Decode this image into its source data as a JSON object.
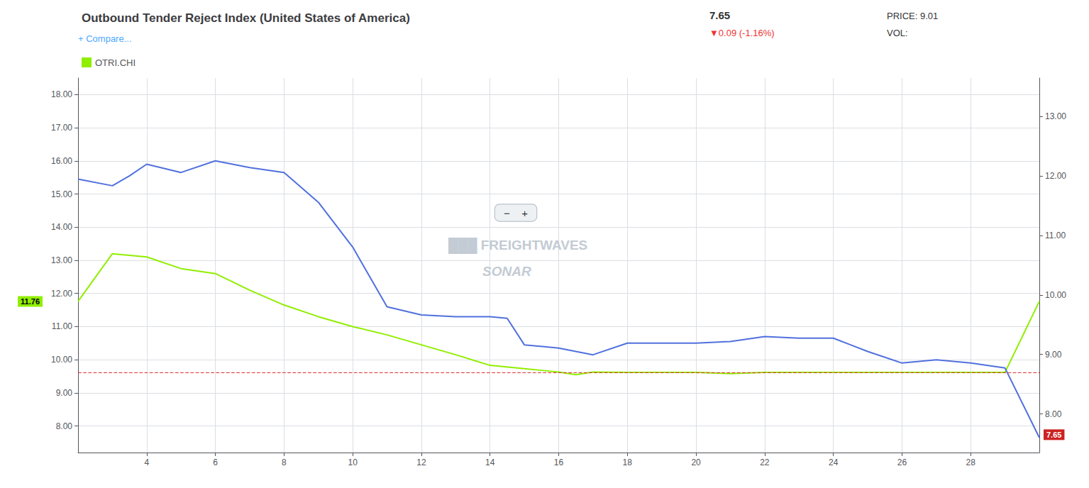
{
  "chart_data": {
    "type": "line",
    "title": "Outbound Tender Reject Index (United States of America)",
    "series": [
      {
        "x": [
          2,
          3,
          3.5,
          4,
          5,
          6,
          7,
          8,
          9,
          10,
          11,
          12,
          13,
          14,
          14.5,
          15,
          16,
          17,
          18,
          19,
          20,
          21,
          22,
          23,
          24,
          24.5,
          25,
          26,
          27,
          28,
          29,
          30
        ],
        "values": [
          15.45,
          15.25,
          15.55,
          15.9,
          15.65,
          16.0,
          15.8,
          15.65,
          14.75,
          13.4,
          11.6,
          11.35,
          11.3,
          11.3,
          11.25,
          10.45,
          10.35,
          10.15,
          10.5,
          10.5,
          10.5,
          10.55,
          10.7,
          10.65,
          10.65,
          10.45,
          10.25,
          9.9,
          10.0,
          9.9,
          9.75,
          7.65
        ]
      },
      {
        "name": "OTRI.CHI",
        "color": "#90ee00",
        "x": [
          2,
          3,
          4,
          5,
          6,
          7,
          8,
          9,
          10,
          11,
          12,
          13,
          14,
          15,
          15.5,
          16,
          16.5,
          17,
          18,
          19,
          20,
          21,
          22,
          23,
          24,
          25,
          26,
          27,
          28,
          29,
          30
        ],
        "values": [
          11.76,
          13.2,
          13.1,
          12.75,
          12.6,
          12.1,
          11.65,
          11.3,
          11.0,
          10.75,
          10.45,
          10.15,
          9.83,
          9.73,
          9.68,
          9.63,
          9.55,
          9.63,
          9.62,
          9.62,
          9.62,
          9.58,
          9.62,
          9.62,
          9.62,
          9.62,
          9.62,
          9.62,
          9.62,
          9.62,
          11.76
        ]
      }
    ],
    "xlim": [
      2,
      30
    ],
    "xticks": [
      4,
      6,
      8,
      10,
      12,
      14,
      16,
      18,
      20,
      22,
      24,
      26,
      28
    ],
    "ylim": [
      7.2,
      18.5
    ],
    "yticks": [
      {
        "value": 8,
        "label": "8.00"
      },
      {
        "value": 9,
        "label": "9.00"
      },
      {
        "value": 10,
        "label": "10.00"
      },
      {
        "value": 11,
        "label": "11.00"
      },
      {
        "value": 12,
        "label": "12.00"
      },
      {
        "value": 13,
        "label": "13.00"
      },
      {
        "value": 14,
        "label": "14.00"
      },
      {
        "value": 15,
        "label": "15.00"
      },
      {
        "value": 16,
        "label": "16.00"
      },
      {
        "value": 17,
        "label": "17.00"
      },
      {
        "value": 18,
        "label": "18.00"
      }
    ],
    "y2lim": [
      7.35,
      13.65
    ],
    "y2ticks": [
      {
        "value": 8,
        "label": "8.00"
      },
      {
        "value": 9,
        "label": "9.00"
      },
      {
        "value": 10,
        "label": "10.00"
      },
      {
        "value": 11,
        "label": "11.00"
      },
      {
        "value": 12,
        "label": "12.00"
      },
      {
        "value": 13,
        "label": "13.00"
      }
    ],
    "grid": true,
    "legend": "upper left",
    "reference_lines": [
      {
        "y": 9.62,
        "color": "#dd3333",
        "line_style": "dashed"
      }
    ],
    "axis_value_labels": [
      {
        "axis": "y",
        "value": 11.76,
        "label": "11.76",
        "color": "#90ee00"
      },
      {
        "axis": "y2",
        "value": 7.65,
        "label": "7.65",
        "color": "#cc2222"
      }
    ],
    "annotations": [
      {
        "text": "7.65"
      },
      {
        "text": "▼0.09 (-1.16%)",
        "color": "#ee3333"
      },
      {
        "text": "PRICE: 9.01"
      },
      {
        "text": "VOL:"
      },
      {
        "text": "+ Compare...",
        "color": "#4da6ff"
      },
      {
        "text": "−    +"
      },
      {
        "text": "███ FREIGHTWAVES"
      },
      {
        "text": "SONAR"
      }
    ]
  }
}
